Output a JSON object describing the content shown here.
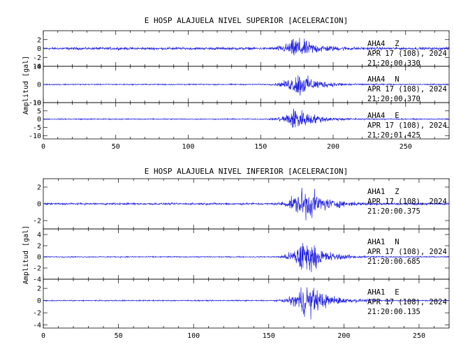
{
  "chart_data": [
    {
      "type": "line",
      "title": "E HOSP ALAJUELA NIVEL SUPERIOR [ACELERACION]",
      "ylabel": "Amplitud [gal]",
      "xlim": [
        0,
        280
      ],
      "xticks": [
        "0",
        "50",
        "100",
        "150",
        "200",
        "250"
      ],
      "line_color": "#1f1fdf",
      "panels": [
        {
          "station": "AHA4",
          "component": "Z",
          "date": "APR 17 (108), 2024",
          "time": "21:20:00.330",
          "ylim": [
            -4,
            4
          ],
          "yticks": [
            "2",
            "0",
            "-2",
            "-4"
          ],
          "peak_amplitude": 3.5,
          "peak_time": 175,
          "onset_time": 150,
          "noise_amplitude": 0.35
        },
        {
          "station": "AHA4",
          "component": "N",
          "date": "APR 17 (108), 2024",
          "time": "21:20:00.370",
          "ylim": [
            -10,
            10
          ],
          "yticks": [
            "10",
            "0",
            "-10"
          ],
          "peak_amplitude": 9,
          "peak_time": 176,
          "onset_time": 150,
          "noise_amplitude": 0.4
        },
        {
          "station": "AHA4",
          "component": "E",
          "date": "APR 17 (108), 2024",
          "time": "21:20:01.425",
          "ylim": [
            -12,
            10
          ],
          "yticks": [
            "10",
            "5",
            "0",
            "-5",
            "-10"
          ],
          "peak_amplitude": 10,
          "peak_time": 174,
          "onset_time": 150,
          "noise_amplitude": 0.4
        }
      ]
    },
    {
      "type": "line",
      "title": "E HOSP ALAJUELA NIVEL INFERIOR [ACELERACION]",
      "ylabel": "Amplitud [gal]",
      "xlim": [
        0,
        270
      ],
      "xticks": [
        "0",
        "50",
        "100",
        "150",
        "200",
        "250"
      ],
      "line_color": "#1f1fdf",
      "panels": [
        {
          "station": "AHA1",
          "component": "Z",
          "date": "APR 17 (108), 2024",
          "time": "21:20:00.375",
          "ylim": [
            -3,
            3
          ],
          "yticks": [
            "2",
            "0",
            "-2"
          ],
          "peak_amplitude": 2.8,
          "peak_time": 174,
          "onset_time": 148,
          "noise_amplitude": 0.15
        },
        {
          "station": "AHA1",
          "component": "N",
          "date": "APR 17 (108), 2024",
          "time": "21:20:00.685",
          "ylim": [
            -4,
            5
          ],
          "yticks": [
            "4",
            "2",
            "0",
            "-2",
            "-4"
          ],
          "peak_amplitude": 4.5,
          "peak_time": 173,
          "onset_time": 150,
          "noise_amplitude": 0.12
        },
        {
          "station": "AHA1",
          "component": "E",
          "date": "APR 17 (108), 2024",
          "time": "21:20:00.135",
          "ylim": [
            -4.5,
            3.5
          ],
          "yticks": [
            "2",
            "0",
            "-2",
            "-4"
          ],
          "peak_amplitude": 4,
          "peak_time": 175,
          "onset_time": 150,
          "noise_amplitude": 0.12
        }
      ]
    }
  ]
}
